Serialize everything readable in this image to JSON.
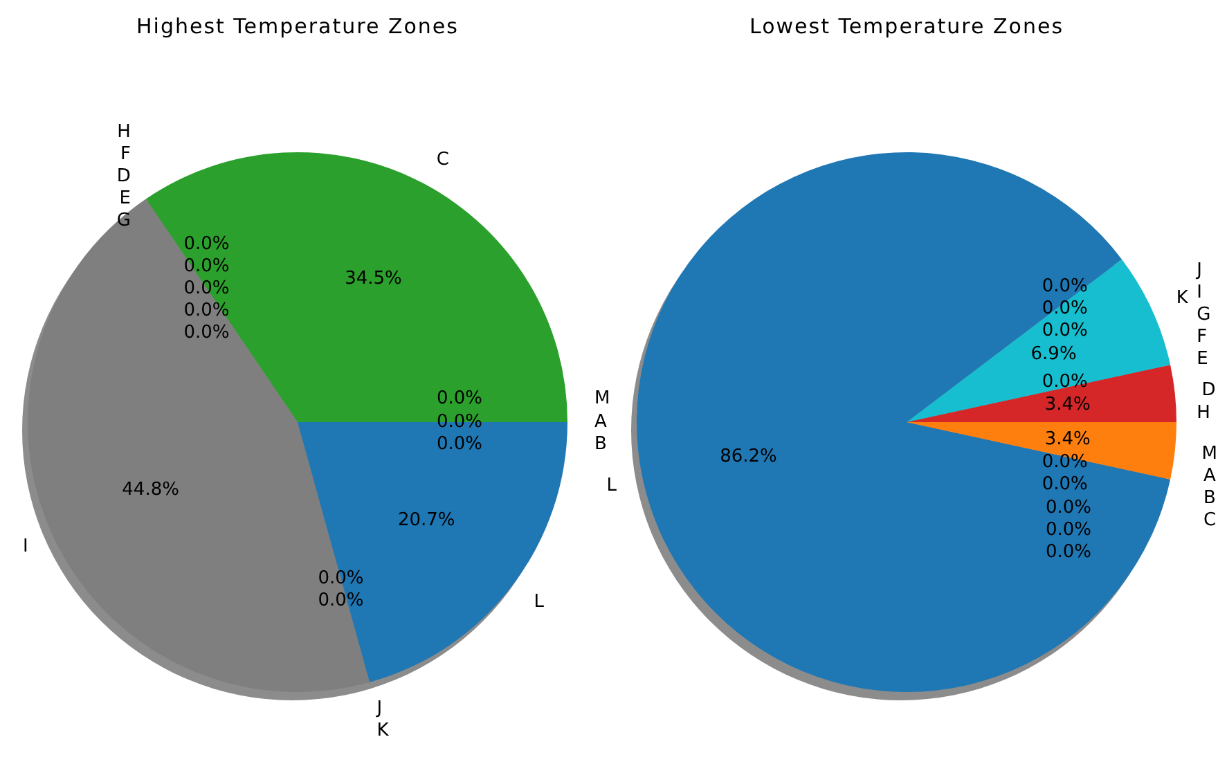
{
  "chart_data": [
    {
      "type": "pie",
      "title": "Highest Temperature Zones",
      "categories": [
        "A",
        "B",
        "C",
        "D",
        "E",
        "F",
        "G",
        "H",
        "I",
        "J",
        "K",
        "L",
        "M"
      ],
      "values": [
        0,
        0,
        34.5,
        0,
        0,
        0,
        0,
        0,
        44.8,
        0,
        0,
        20.7,
        0
      ],
      "value_labels": [
        "0.0%",
        "0.0%",
        "34.5%",
        "0.0%",
        "0.0%",
        "0.0%",
        "0.0%",
        "0.0%",
        "44.8%",
        "0.0%",
        "0.0%",
        "20.7%",
        "0.0%"
      ],
      "colors": [
        null,
        null,
        "#2ca02c",
        null,
        null,
        null,
        null,
        null,
        "#7f7f7f",
        null,
        null,
        "#1f77b4",
        null
      ],
      "legend": false
    },
    {
      "type": "pie",
      "title": "Lowest Temperature Zones",
      "categories": [
        "A",
        "B",
        "C",
        "D",
        "E",
        "F",
        "G",
        "H",
        "I",
        "J",
        "K",
        "L",
        "M"
      ],
      "values": [
        0,
        0,
        0,
        3.4,
        0,
        0,
        0,
        0,
        0,
        0,
        6.9,
        86.2,
        3.4
      ],
      "value_labels": [
        "0.0%",
        "0.0%",
        "0.0%",
        "3.4%",
        "0.0%",
        "0.0%",
        "0.0%",
        "0.0%",
        "0.0%",
        "0.0%",
        "6.9%",
        "86.2%",
        "3.4%"
      ],
      "colors": [
        null,
        null,
        null,
        "#d62728",
        null,
        null,
        null,
        null,
        null,
        null,
        "#17becf",
        "#1f77b4",
        "#ff7f0e"
      ],
      "legend": false
    }
  ]
}
